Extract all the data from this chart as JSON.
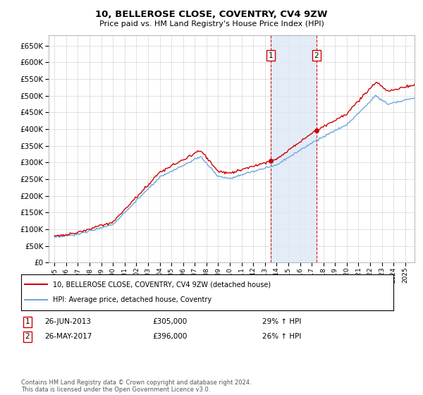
{
  "title": "10, BELLEROSE CLOSE, COVENTRY, CV4 9ZW",
  "subtitle": "Price paid vs. HM Land Registry's House Price Index (HPI)",
  "ylim": [
    0,
    680000
  ],
  "yticks": [
    0,
    50000,
    100000,
    150000,
    200000,
    250000,
    300000,
    350000,
    400000,
    450000,
    500000,
    550000,
    600000,
    650000
  ],
  "sale1_date": 2013.49,
  "sale1_price": 305000,
  "sale2_date": 2017.41,
  "sale2_price": 396000,
  "hpi_color": "#6fa8dc",
  "price_color": "#cc0000",
  "shaded_color": "#dce8f5",
  "vline_color": "#cc0000",
  "legend_label1": "10, BELLEROSE CLOSE, COVENTRY, CV4 9ZW (detached house)",
  "legend_label2": "HPI: Average price, detached house, Coventry",
  "annotation1_date": "26-JUN-2013",
  "annotation1_price": "£305,000",
  "annotation1_hpi": "29% ↑ HPI",
  "annotation2_date": "26-MAY-2017",
  "annotation2_price": "£396,000",
  "annotation2_hpi": "26% ↑ HPI",
  "footer": "Contains HM Land Registry data © Crown copyright and database right 2024.\nThis data is licensed under the Open Government Licence v3.0.",
  "background_color": "#ffffff",
  "grid_color": "#cccccc"
}
